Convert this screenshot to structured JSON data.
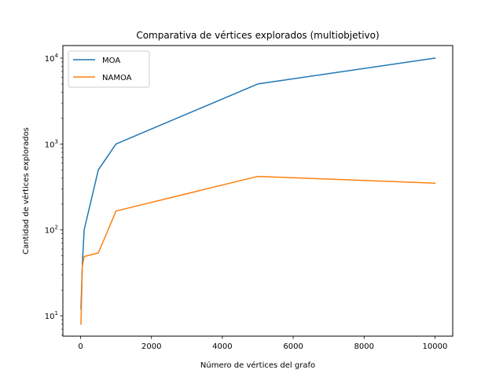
{
  "chart_data": {
    "type": "line",
    "title": "Comparativa de vértices explorados (multiobjetivo)",
    "xlabel": "Número de vértices del grafo",
    "ylabel": "Cantidad de vértices explorados",
    "xlim": [
      -500,
      10500
    ],
    "ylim": [
      5.8,
      14000
    ],
    "yscale": "log",
    "grid": false,
    "legend": "top-left",
    "x_ticks": [
      {
        "value": 0,
        "label": "0"
      },
      {
        "value": 2000,
        "label": "2000"
      },
      {
        "value": 4000,
        "label": "4000"
      },
      {
        "value": 6000,
        "label": "6000"
      },
      {
        "value": 8000,
        "label": "8000"
      },
      {
        "value": 10000,
        "label": "10000"
      }
    ],
    "y_ticks": [
      {
        "value": 10,
        "base": "10",
        "exp": "1"
      },
      {
        "value": 100,
        "base": "10",
        "exp": "2"
      },
      {
        "value": 1000,
        "base": "10",
        "exp": "3"
      },
      {
        "value": 10000,
        "base": "10",
        "exp": "4"
      }
    ],
    "series": [
      {
        "name": "MOA",
        "color": "#1f77b4",
        "x": [
          10,
          50,
          100,
          500,
          1000,
          5000,
          10000
        ],
        "values": [
          12,
          40,
          100,
          500,
          1000,
          5000,
          10000
        ]
      },
      {
        "name": "NAMOA",
        "color": "#ff7f0e",
        "x": [
          10,
          50,
          100,
          500,
          1000,
          5000,
          10000
        ],
        "values": [
          8,
          38,
          49,
          54,
          166,
          420,
          350
        ]
      }
    ]
  }
}
